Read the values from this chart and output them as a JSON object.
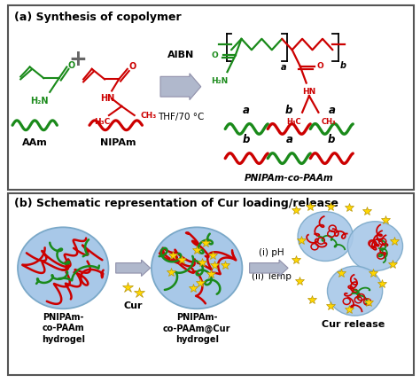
{
  "title_a": "(a) Synthesis of copolymer",
  "title_b": "(b) Schematic representation of Cur loading/release",
  "green_color": "#1a8a1a",
  "red_color": "#CC0000",
  "black_color": "#000000",
  "blue_circle": "#a8c8e8",
  "blue_circle_edge": "#7aa8c8",
  "arrow_color": "#b0b8cc",
  "star_color": "#FFD700",
  "star_edge": "#b8960a",
  "aibn_text": "AIBN",
  "thf_text": "THF/70 °C",
  "label_aam": "AAm",
  "label_nipam": "NIPAm",
  "label_product": "PNIPAm-co-PAAm",
  "background": "#FFFFFF"
}
